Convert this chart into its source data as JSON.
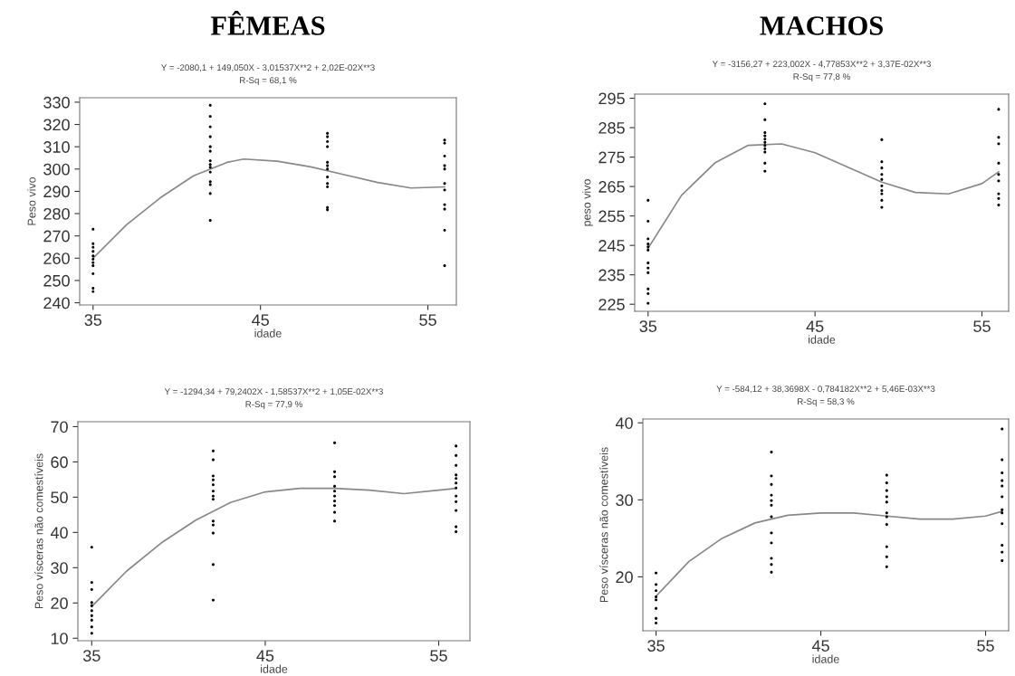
{
  "chart_data": [
    {
      "type": "scatter",
      "annotations": [
        "FÊMEAS"
      ],
      "title": "Y = -2080,1 + 149,050X - 3,01537X**2 + 2,02E-02X**3",
      "subtitle": "R-Sq = 68,1 %",
      "xlabel": "idade",
      "ylabel": "Peso vivo",
      "xlim": [
        34.2,
        56.7
      ],
      "xticks": [
        35,
        45,
        55
      ],
      "ylim": [
        239,
        332
      ],
      "yticks": [
        240,
        250,
        260,
        270,
        280,
        290,
        300,
        310,
        320,
        330
      ],
      "grid": false,
      "legend": false,
      "series": [
        {
          "type": "scatter",
          "marker": "circle",
          "color": "#000000",
          "x": [
            35,
            35,
            35,
            35,
            35,
            35,
            35,
            35,
            35,
            35,
            35,
            42,
            42,
            42,
            42,
            42,
            42,
            42,
            42,
            42,
            42,
            42,
            42,
            42,
            42,
            49,
            49,
            49,
            49,
            49,
            49,
            49,
            49,
            49,
            49,
            49,
            49,
            56,
            56,
            56,
            56,
            56,
            56,
            56,
            56,
            56,
            56,
            56
          ],
          "values": [
            273,
            266.5,
            264.9,
            263,
            261,
            259.5,
            258,
            256.6,
            253,
            246.5,
            245,
            328.6,
            323.6,
            318.9,
            314.5,
            310,
            308,
            303.7,
            302,
            300.8,
            298.6,
            294.3,
            293,
            289,
            276.9,
            316,
            314.5,
            312.3,
            310,
            303,
            301.5,
            300,
            296.4,
            293.5,
            292,
            282.7,
            281.7,
            313,
            311.6,
            305.8,
            301.5,
            300,
            293.5,
            290.6,
            284,
            282,
            272.5,
            256.6
          ]
        },
        {
          "type": "line",
          "marker": "none",
          "color": "#888888",
          "x": [
            35,
            37,
            39,
            41,
            43,
            44,
            46,
            48,
            50,
            52,
            54,
            56
          ],
          "values": [
            260,
            275,
            287,
            297,
            303,
            304.5,
            303.5,
            301,
            297.5,
            294,
            291.5,
            292
          ]
        }
      ]
    },
    {
      "type": "scatter",
      "annotations": [
        "MACHOS"
      ],
      "title": "Y = -3156,27 + 223,002X - 4,77853X**2 + 3,37E-02X**3",
      "subtitle": "R-Sq = 77,8 %",
      "xlabel": "idade",
      "ylabel": "peso vivo",
      "xlim": [
        34.2,
        56.6
      ],
      "xticks": [
        35,
        45,
        55
      ],
      "ylim": [
        222.6,
        296.4
      ],
      "yticks": [
        225,
        235,
        245,
        255,
        265,
        275,
        285,
        295
      ],
      "grid": false,
      "legend": false,
      "series": [
        {
          "type": "scatter",
          "marker": "circle",
          "color": "#000000",
          "x": [
            35,
            35,
            35,
            35,
            35,
            35,
            35,
            35,
            35,
            35,
            35,
            35,
            42,
            42,
            42,
            42,
            42,
            42,
            42,
            42,
            42,
            42,
            42,
            49,
            49,
            49,
            49,
            49,
            49,
            49,
            49,
            49,
            49,
            56,
            56,
            56,
            56,
            56,
            56,
            56,
            56,
            56
          ],
          "values": [
            260.3,
            253.2,
            247.2,
            245.5,
            244.5,
            243.4,
            239,
            237.3,
            235.7,
            230.2,
            228.6,
            225.3,
            293.1,
            287.7,
            283.3,
            282.2,
            281.1,
            280,
            278.9,
            277.8,
            276.7,
            272.9,
            270.2,
            280.9,
            273.4,
            271.3,
            269.1,
            267.4,
            265.2,
            263.6,
            262.5,
            260.3,
            257.9,
            291.2,
            281.7,
            279.5,
            272.9,
            269.1,
            266.9,
            262.5,
            260.9,
            258.7
          ]
        },
        {
          "type": "line",
          "marker": "none",
          "color": "#888888",
          "x": [
            35,
            37,
            39,
            41,
            43,
            45,
            47,
            49,
            51,
            53,
            55,
            56
          ],
          "values": [
            244,
            262,
            273,
            279,
            279.5,
            276.5,
            271.5,
            266.5,
            263,
            262.5,
            266,
            270
          ]
        }
      ]
    },
    {
      "type": "scatter",
      "title": "Y = -1294,34 + 79,2402X - 1,58537X**2 + 1,05E-02X**3",
      "subtitle": "R-Sq = 77,9 %",
      "xlabel": "idade",
      "ylabel": "Peso vísceras não comestíveis",
      "xlim": [
        34.2,
        56.8
      ],
      "xticks": [
        35,
        45,
        55
      ],
      "ylim": [
        9.3,
        71.4
      ],
      "yticks": [
        10,
        20,
        30,
        40,
        50,
        60,
        70
      ],
      "grid": false,
      "legend": false,
      "series": [
        {
          "type": "scatter",
          "marker": "circle",
          "color": "#000000",
          "x": [
            35,
            35,
            35,
            35,
            35,
            35,
            35,
            35,
            35,
            35,
            42,
            42,
            42,
            42,
            42,
            42,
            42,
            42,
            42,
            42,
            42,
            42,
            42,
            49,
            49,
            49,
            49,
            49,
            49,
            49,
            49,
            49,
            49,
            56,
            56,
            56,
            56,
            56,
            56,
            56,
            56,
            56,
            56,
            56,
            56
          ],
          "values": [
            35.8,
            25.8,
            23.8,
            20.1,
            19.2,
            17.8,
            16.4,
            15.1,
            13.2,
            11.4,
            63.1,
            60.6,
            56,
            54.9,
            53.5,
            51.7,
            50.3,
            49.4,
            43.2,
            42.1,
            39.8,
            30.9,
            20.8,
            65.4,
            57.2,
            55.8,
            53.1,
            51.7,
            50.3,
            48.9,
            47.6,
            45.7,
            43.2,
            64.5,
            61.8,
            59,
            56.3,
            55.3,
            54,
            52.6,
            50.3,
            48.7,
            46.2,
            41.6,
            40.2
          ]
        },
        {
          "type": "line",
          "marker": "none",
          "color": "#888888",
          "x": [
            35,
            37,
            39,
            41,
            43,
            45,
            47,
            49,
            51,
            53,
            55,
            56
          ],
          "values": [
            19,
            29,
            37,
            43.5,
            48.5,
            51.5,
            52.5,
            52.5,
            52,
            51,
            52,
            52.5
          ]
        }
      ]
    },
    {
      "type": "scatter",
      "title": "Y = -584,12 + 38,3698X - 0,784182X**2 + 5,46E-03X**3",
      "subtitle": "R-Sq = 58,3 %",
      "xlabel": "idade",
      "ylabel": "Peso vísceras não comestíveis",
      "xlim": [
        34.2,
        56.4
      ],
      "xticks": [
        35,
        45,
        55
      ],
      "ylim": [
        13.0,
        40.5
      ],
      "yticks": [
        20,
        30,
        40
      ],
      "grid": false,
      "legend": false,
      "series": [
        {
          "type": "scatter",
          "marker": "circle",
          "color": "#000000",
          "x": [
            35,
            35,
            35,
            35,
            35,
            35,
            35,
            35,
            42,
            42,
            42,
            42,
            42,
            42,
            42,
            42,
            42,
            42,
            42,
            42,
            49,
            49,
            49,
            49,
            49,
            49,
            49,
            49,
            49,
            49,
            49,
            56,
            56,
            56,
            56,
            56,
            56,
            56,
            56,
            56,
            56,
            56,
            56
          ],
          "values": [
            20.5,
            19,
            18.2,
            17.4,
            17,
            15.9,
            14.6,
            14,
            36.2,
            33.1,
            32,
            30.6,
            29.9,
            29.3,
            27.8,
            25.7,
            24.4,
            22.4,
            21.6,
            20.6,
            33.2,
            32.2,
            31.2,
            30.4,
            29.7,
            28.3,
            27.8,
            26.8,
            23.9,
            22.6,
            21.3,
            39.2,
            35.2,
            33.5,
            32.5,
            31.8,
            30.4,
            28.7,
            28.3,
            26.9,
            24.1,
            23.2,
            22.1
          ]
        },
        {
          "type": "line",
          "marker": "none",
          "color": "#888888",
          "x": [
            35,
            37,
            39,
            41,
            43,
            45,
            47,
            49,
            51,
            53,
            55,
            56
          ],
          "values": [
            17.5,
            22,
            25,
            27,
            28,
            28.3,
            28.3,
            27.9,
            27.5,
            27.5,
            27.9,
            28.5
          ]
        }
      ]
    }
  ]
}
